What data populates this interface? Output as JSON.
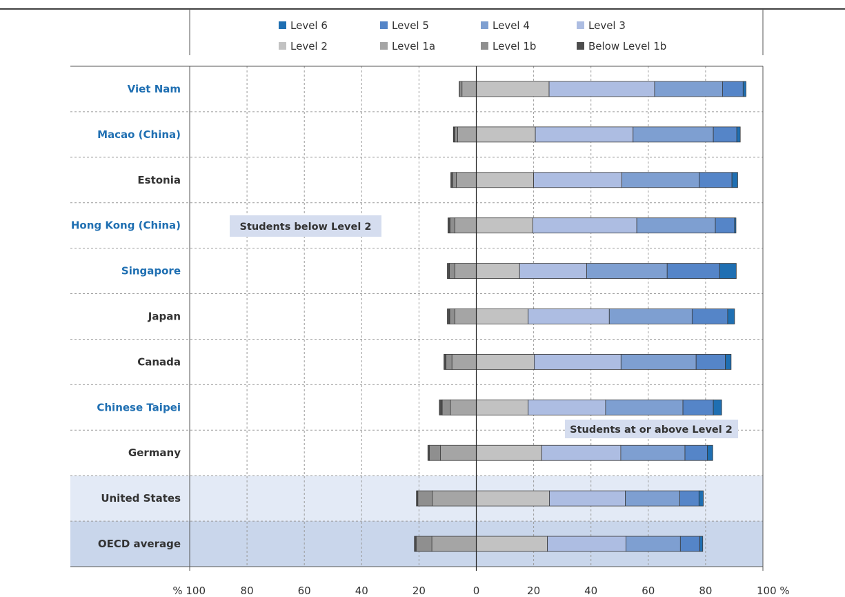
{
  "chart_data": {
    "type": "bar",
    "orientation": "horizontal",
    "stacked": "diverging",
    "xlim": [
      -100,
      100
    ],
    "x_ticks": [
      -100,
      -80,
      -60,
      -40,
      -20,
      0,
      20,
      40,
      60,
      80,
      100
    ],
    "x_tick_labels": [
      "% 100",
      "80",
      "60",
      "40",
      "20",
      "0",
      "20",
      "40",
      "60",
      "80",
      "100 %"
    ],
    "grid": "vertical dashed",
    "legend_position": "top",
    "legend": [
      "Level 6",
      "Level 5",
      "Level 4",
      "Level 3",
      "Level 2",
      "Level 1a",
      "Level 1b",
      "Below Level 1b"
    ],
    "annotations": {
      "below": "Students below Level 2",
      "above": "Students at or above Level 2"
    },
    "categories": [
      "Viet Nam",
      "Macao (China)",
      "Estonia",
      "Hong Kong (China)",
      "Singapore",
      "Japan",
      "Canada",
      "Chinese Taipei",
      "Germany",
      "United States",
      "OECD average"
    ],
    "category_colors": [
      "#1f6fb2",
      "#1f6fb2",
      "#333333",
      "#1f6fb2",
      "#1f6fb2",
      "#333333",
      "#333333",
      "#1f6fb2",
      "#333333",
      "#333333",
      "#333333"
    ],
    "highlight_rows": {
      "United States": "#e3eaf6",
      "OECD average": "#c9d6eb"
    },
    "series": [
      {
        "name": "Below Level 1b",
        "color": "#4d4d4d",
        "side": "below",
        "values": [
          0.1,
          0.5,
          0.6,
          0.7,
          0.7,
          0.8,
          0.7,
          1.0,
          0.5,
          0.5,
          0.6
        ]
      },
      {
        "name": "Level 1b",
        "color": "#8f8f8f",
        "side": "below",
        "values": [
          0.9,
          1.0,
          1.3,
          1.7,
          1.9,
          1.8,
          2.1,
          2.9,
          3.9,
          5.0,
          5.5
        ]
      },
      {
        "name": "Level 1a",
        "color": "#a5a5a5",
        "side": "below",
        "values": [
          5.0,
          6.5,
          7.0,
          7.5,
          7.5,
          7.5,
          8.5,
          9.0,
          12.5,
          15.4,
          15.5
        ]
      },
      {
        "name": "Level 2",
        "color": "#c2c2c2",
        "side": "above",
        "values": [
          25.4,
          20.6,
          20.0,
          19.7,
          15.1,
          18.1,
          20.2,
          18.1,
          22.8,
          25.5,
          24.8
        ]
      },
      {
        "name": "Level 3",
        "color": "#adbde2",
        "side": "above",
        "values": [
          36.8,
          34.1,
          30.8,
          36.3,
          23.4,
          28.3,
          30.3,
          27.0,
          27.6,
          26.5,
          27.4
        ]
      },
      {
        "name": "Level 4",
        "color": "#7e9fd1",
        "side": "above",
        "values": [
          23.7,
          28.0,
          27.0,
          27.4,
          28.1,
          28.9,
          26.2,
          27.0,
          22.4,
          19.0,
          19.0
        ]
      },
      {
        "name": "Level 5",
        "color": "#5585c8",
        "side": "above",
        "values": [
          7.2,
          8.2,
          11.4,
          6.7,
          18.3,
          12.4,
          10.2,
          10.6,
          7.8,
          6.7,
          6.8
        ]
      },
      {
        "name": "Level 6",
        "color": "#1f6fb2",
        "side": "above",
        "values": [
          1.0,
          1.2,
          2.0,
          0.5,
          5.8,
          2.4,
          2.0,
          2.9,
          1.9,
          1.5,
          1.0
        ]
      }
    ]
  }
}
